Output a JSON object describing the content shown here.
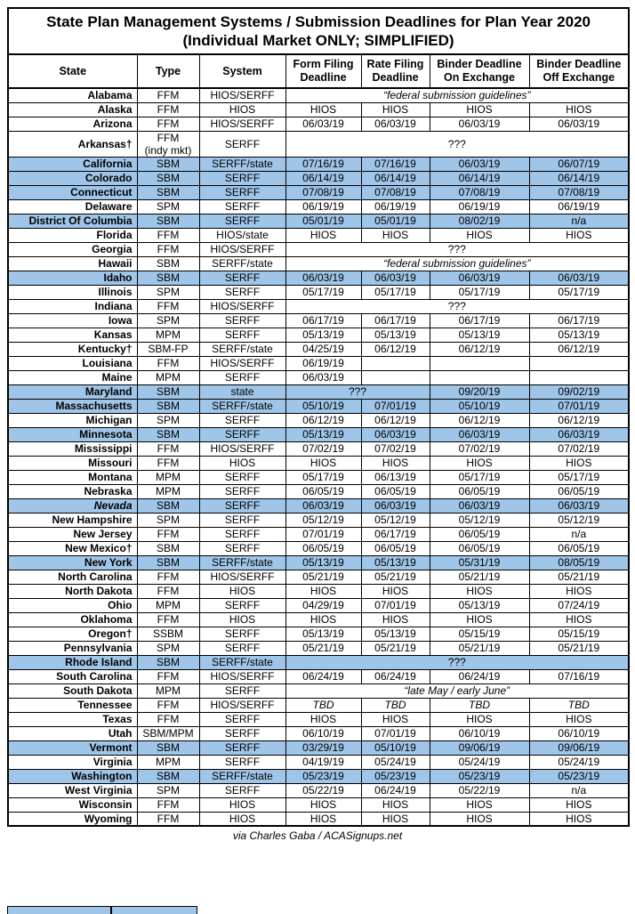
{
  "title": {
    "line1": "State Plan Management Systems / Submission Deadlines for Plan Year 2020",
    "line2": "(Individual Market ONLY; SIMPLIFIED)"
  },
  "columns": [
    "State",
    "Type",
    "System",
    "Form Filing\nDeadline",
    "Rate Filing\nDeadline",
    "Binder Deadline\nOn Exchange",
    "Binder Deadline\nOff Exchange"
  ],
  "colors": {
    "highlight": "#9FC5E8",
    "border": "#000000"
  },
  "rows": [
    {
      "state": "Alabama",
      "type": "FFM",
      "system": "HIOS/SERFF",
      "highlight": false,
      "cells": [
        {
          "text": "“federal submission guidelines”",
          "colspan": 4,
          "italic": true
        }
      ]
    },
    {
      "state": "Alaska",
      "type": "FFM",
      "system": "HIOS",
      "highlight": false,
      "cells": [
        {
          "text": "HIOS"
        },
        {
          "text": "HIOS"
        },
        {
          "text": "HIOS"
        },
        {
          "text": "HIOS"
        }
      ]
    },
    {
      "state": "Arizona",
      "type": "FFM",
      "system": "HIOS/SERFF",
      "highlight": false,
      "cells": [
        {
          "text": "06/03/19"
        },
        {
          "text": "06/03/19"
        },
        {
          "text": "06/03/19"
        },
        {
          "text": "06/03/19"
        }
      ]
    },
    {
      "state": "Arkansas†",
      "type": "FFM\n(indy mkt)",
      "system": "SERFF",
      "highlight": false,
      "cells": [
        {
          "text": "???",
          "colspan": 4
        }
      ]
    },
    {
      "state": "California",
      "type": "SBM",
      "system": "SERFF/state",
      "highlight": true,
      "cells": [
        {
          "text": "07/16/19"
        },
        {
          "text": "07/16/19"
        },
        {
          "text": "06/03/19"
        },
        {
          "text": "06/07/19"
        }
      ]
    },
    {
      "state": "Colorado",
      "type": "SBM",
      "system": "SERFF",
      "highlight": true,
      "cells": [
        {
          "text": "06/14/19"
        },
        {
          "text": "06/14/19"
        },
        {
          "text": "06/14/19"
        },
        {
          "text": "06/14/19"
        }
      ]
    },
    {
      "state": "Connecticut",
      "type": "SBM",
      "system": "SERFF",
      "highlight": true,
      "cells": [
        {
          "text": "07/08/19"
        },
        {
          "text": "07/08/19"
        },
        {
          "text": "07/08/19"
        },
        {
          "text": "07/08/19"
        }
      ]
    },
    {
      "state": "Delaware",
      "type": "SPM",
      "system": "SERFF",
      "highlight": false,
      "cells": [
        {
          "text": "06/19/19"
        },
        {
          "text": "06/19/19"
        },
        {
          "text": "06/19/19"
        },
        {
          "text": "06/19/19"
        }
      ]
    },
    {
      "state": "District Of Columbia",
      "type": "SBM",
      "system": "SERFF",
      "highlight": true,
      "cells": [
        {
          "text": "05/01/19"
        },
        {
          "text": "05/01/19"
        },
        {
          "text": "08/02/19"
        },
        {
          "text": "n/a"
        }
      ]
    },
    {
      "state": "Florida",
      "type": "FFM",
      "system": "HIOS/state",
      "highlight": false,
      "cells": [
        {
          "text": "HIOS"
        },
        {
          "text": "HIOS"
        },
        {
          "text": "HIOS"
        },
        {
          "text": "HIOS"
        }
      ]
    },
    {
      "state": "Georgia",
      "type": "FFM",
      "system": "HIOS/SERFF",
      "highlight": false,
      "cells": [
        {
          "text": "???",
          "colspan": 4
        }
      ]
    },
    {
      "state": "Hawaii",
      "type": "SBM",
      "system": "SERFF/state",
      "highlight": false,
      "cells": [
        {
          "text": "“federal submission guidelines”",
          "colspan": 4,
          "italic": true
        }
      ]
    },
    {
      "state": "Idaho",
      "type": "SBM",
      "system": "SERFF",
      "highlight": true,
      "cells": [
        {
          "text": "06/03/19"
        },
        {
          "text": "06/03/19"
        },
        {
          "text": "06/03/19"
        },
        {
          "text": "06/03/19"
        }
      ]
    },
    {
      "state": "Illinois",
      "type": "SPM",
      "system": "SERFF",
      "highlight": false,
      "cells": [
        {
          "text": "05/17/19"
        },
        {
          "text": "05/17/19"
        },
        {
          "text": "05/17/19"
        },
        {
          "text": "05/17/19"
        }
      ]
    },
    {
      "state": "Indiana",
      "type": "FFM",
      "system": "HIOS/SERFF",
      "highlight": false,
      "cells": [
        {
          "text": "???",
          "colspan": 4
        }
      ]
    },
    {
      "state": "Iowa",
      "type": "SPM",
      "system": "SERFF",
      "highlight": false,
      "cells": [
        {
          "text": "06/17/19"
        },
        {
          "text": "06/17/19"
        },
        {
          "text": "06/17/19"
        },
        {
          "text": "06/17/19"
        }
      ]
    },
    {
      "state": "Kansas",
      "type": "MPM",
      "system": "SERFF",
      "highlight": false,
      "cells": [
        {
          "text": "05/13/19"
        },
        {
          "text": "05/13/19"
        },
        {
          "text": "05/13/19"
        },
        {
          "text": "05/13/19"
        }
      ]
    },
    {
      "state": "Kentucky†",
      "type": "SBM-FP",
      "system": "SERFF/state",
      "highlight": false,
      "cells": [
        {
          "text": "04/25/19"
        },
        {
          "text": "06/12/19"
        },
        {
          "text": "06/12/19"
        },
        {
          "text": "06/12/19"
        }
      ]
    },
    {
      "state": "Louisiana",
      "type": "FFM",
      "system": "HIOS/SERFF",
      "highlight": false,
      "cells": [
        {
          "text": "06/19/19"
        },
        {
          "text": ""
        },
        {
          "text": ""
        },
        {
          "text": ""
        }
      ]
    },
    {
      "state": "Maine",
      "type": "MPM",
      "system": "SERFF",
      "highlight": false,
      "cells": [
        {
          "text": "06/03/19"
        },
        {
          "text": ""
        },
        {
          "text": ""
        },
        {
          "text": ""
        }
      ]
    },
    {
      "state": "Maryland",
      "type": "SBM",
      "system": "state",
      "highlight": true,
      "cells": [
        {
          "text": "???",
          "colspan": 2
        },
        {
          "text": "09/20/19"
        },
        {
          "text": "09/02/19"
        }
      ]
    },
    {
      "state": "Massachusetts",
      "type": "SBM",
      "system": "SERFF/state",
      "highlight": true,
      "cells": [
        {
          "text": "05/10/19"
        },
        {
          "text": "07/01/19"
        },
        {
          "text": "05/10/19"
        },
        {
          "text": "07/01/19"
        }
      ]
    },
    {
      "state": "Michigan",
      "type": "SPM",
      "system": "SERFF",
      "highlight": false,
      "cells": [
        {
          "text": "06/12/19"
        },
        {
          "text": "06/12/19"
        },
        {
          "text": "06/12/19"
        },
        {
          "text": "06/12/19"
        }
      ]
    },
    {
      "state": "Minnesota",
      "type": "SBM",
      "system": "SERFF",
      "highlight": true,
      "cells": [
        {
          "text": "05/13/19"
        },
        {
          "text": "06/03/19"
        },
        {
          "text": "06/03/19"
        },
        {
          "text": "06/03/19"
        }
      ]
    },
    {
      "state": "Mississippi",
      "type": "FFM",
      "system": "HIOS/SERFF",
      "highlight": false,
      "cells": [
        {
          "text": "07/02/19"
        },
        {
          "text": "07/02/19"
        },
        {
          "text": "07/02/19"
        },
        {
          "text": "07/02/19"
        }
      ]
    },
    {
      "state": "Missouri",
      "type": "FFM",
      "system": "HIOS",
      "highlight": false,
      "cells": [
        {
          "text": "HIOS"
        },
        {
          "text": "HIOS"
        },
        {
          "text": "HIOS"
        },
        {
          "text": "HIOS"
        }
      ]
    },
    {
      "state": "Montana",
      "type": "MPM",
      "system": "SERFF",
      "highlight": false,
      "cells": [
        {
          "text": "05/17/19"
        },
        {
          "text": "06/13/19"
        },
        {
          "text": "05/17/19"
        },
        {
          "text": "05/17/19"
        }
      ]
    },
    {
      "state": "Nebraska",
      "type": "MPM",
      "system": "SERFF",
      "highlight": false,
      "cells": [
        {
          "text": "06/05/19"
        },
        {
          "text": "06/05/19"
        },
        {
          "text": "06/05/19"
        },
        {
          "text": "06/05/19"
        }
      ]
    },
    {
      "state": "Nevada",
      "stateItalic": true,
      "type": "SBM",
      "system": "SERFF",
      "highlight": true,
      "cells": [
        {
          "text": "06/03/19"
        },
        {
          "text": "06/03/19"
        },
        {
          "text": "06/03/19"
        },
        {
          "text": "06/03/19"
        }
      ]
    },
    {
      "state": "New Hampshire",
      "type": "SPM",
      "system": "SERFF",
      "highlight": false,
      "cells": [
        {
          "text": "05/12/19"
        },
        {
          "text": "05/12/19"
        },
        {
          "text": "05/12/19"
        },
        {
          "text": "05/12/19"
        }
      ]
    },
    {
      "state": "New Jersey",
      "type": "FFM",
      "system": "SERFF",
      "highlight": false,
      "cells": [
        {
          "text": "07/01/19"
        },
        {
          "text": "06/17/19"
        },
        {
          "text": "06/05/19"
        },
        {
          "text": "n/a"
        }
      ]
    },
    {
      "state": "New Mexico†",
      "type": "SBM",
      "system": "SERFF",
      "highlight": false,
      "cells": [
        {
          "text": "06/05/19"
        },
        {
          "text": "06/05/19"
        },
        {
          "text": "06/05/19"
        },
        {
          "text": "06/05/19"
        }
      ]
    },
    {
      "state": "New York",
      "type": "SBM",
      "system": "SERFF/state",
      "highlight": true,
      "cells": [
        {
          "text": "05/13/19"
        },
        {
          "text": "05/13/19"
        },
        {
          "text": "05/31/19"
        },
        {
          "text": "08/05/19"
        }
      ]
    },
    {
      "state": "North Carolina",
      "type": "FFM",
      "system": "HIOS/SERFF",
      "highlight": false,
      "cells": [
        {
          "text": "05/21/19"
        },
        {
          "text": "05/21/19"
        },
        {
          "text": "05/21/19"
        },
        {
          "text": "05/21/19"
        }
      ]
    },
    {
      "state": "North Dakota",
      "type": "FFM",
      "system": "HIOS",
      "highlight": false,
      "cells": [
        {
          "text": "HIOS"
        },
        {
          "text": "HIOS"
        },
        {
          "text": "HIOS"
        },
        {
          "text": "HIOS"
        }
      ]
    },
    {
      "state": "Ohio",
      "type": "MPM",
      "system": "SERFF",
      "highlight": false,
      "cells": [
        {
          "text": "04/29/19"
        },
        {
          "text": "07/01/19"
        },
        {
          "text": "05/13/19"
        },
        {
          "text": "07/24/19"
        }
      ]
    },
    {
      "state": "Oklahoma",
      "type": "FFM",
      "system": "HIOS",
      "highlight": false,
      "cells": [
        {
          "text": "HIOS"
        },
        {
          "text": "HIOS"
        },
        {
          "text": "HIOS"
        },
        {
          "text": "HIOS"
        }
      ]
    },
    {
      "state": "Oregon†",
      "type": "SSBM",
      "system": "SERFF",
      "highlight": false,
      "cells": [
        {
          "text": "05/13/19"
        },
        {
          "text": "05/13/19"
        },
        {
          "text": "05/15/19"
        },
        {
          "text": "05/15/19"
        }
      ]
    },
    {
      "state": "Pennsylvania",
      "type": "SPM",
      "system": "SERFF",
      "highlight": false,
      "cells": [
        {
          "text": "05/21/19"
        },
        {
          "text": "05/21/19"
        },
        {
          "text": "05/21/19"
        },
        {
          "text": "05/21/19"
        }
      ]
    },
    {
      "state": "Rhode Island",
      "type": "SBM",
      "system": "SERFF/state",
      "highlight": true,
      "cells": [
        {
          "text": "???",
          "colspan": 4
        }
      ]
    },
    {
      "state": "South Carolina",
      "type": "FFM",
      "system": "HIOS/SERFF",
      "highlight": false,
      "cells": [
        {
          "text": "06/24/19"
        },
        {
          "text": "06/24/19"
        },
        {
          "text": "06/24/19"
        },
        {
          "text": "07/16/19"
        }
      ]
    },
    {
      "state": "South Dakota",
      "type": "MPM",
      "system": "SERFF",
      "highlight": false,
      "cells": [
        {
          "text": "“late May / early June”",
          "colspan": 4,
          "italic": true
        }
      ]
    },
    {
      "state": "Tennessee",
      "type": "FFM",
      "system": "HIOS/SERFF",
      "highlight": false,
      "cells": [
        {
          "text": "TBD",
          "italic": true
        },
        {
          "text": "TBD",
          "italic": true
        },
        {
          "text": "TBD",
          "italic": true
        },
        {
          "text": "TBD",
          "italic": true
        }
      ]
    },
    {
      "state": "Texas",
      "type": "FFM",
      "system": "SERFF",
      "highlight": false,
      "cells": [
        {
          "text": "HIOS"
        },
        {
          "text": "HIOS"
        },
        {
          "text": "HIOS"
        },
        {
          "text": "HIOS"
        }
      ]
    },
    {
      "state": "Utah",
      "type": "SBM/MPM",
      "system": "SERFF",
      "highlight": false,
      "cells": [
        {
          "text": "06/10/19"
        },
        {
          "text": "07/01/19"
        },
        {
          "text": "06/10/19"
        },
        {
          "text": "06/10/19"
        }
      ]
    },
    {
      "state": "Vermont",
      "type": "SBM",
      "system": "SERFF",
      "highlight": true,
      "cells": [
        {
          "text": "03/29/19"
        },
        {
          "text": "05/10/19"
        },
        {
          "text": "09/06/19"
        },
        {
          "text": "09/06/19"
        }
      ]
    },
    {
      "state": "Virginia",
      "type": "MPM",
      "system": "SERFF",
      "highlight": false,
      "cells": [
        {
          "text": "04/19/19"
        },
        {
          "text": "05/24/19"
        },
        {
          "text": "05/24/19"
        },
        {
          "text": "05/24/19"
        }
      ]
    },
    {
      "state": "Washington",
      "type": "SBM",
      "system": "SERFF/state",
      "highlight": true,
      "cells": [
        {
          "text": "05/23/19"
        },
        {
          "text": "05/23/19"
        },
        {
          "text": "05/23/19"
        },
        {
          "text": "05/23/19"
        }
      ]
    },
    {
      "state": "West Virginia",
      "type": "SPM",
      "system": "SERFF",
      "highlight": false,
      "cells": [
        {
          "text": "05/22/19"
        },
        {
          "text": "06/24/19"
        },
        {
          "text": "05/22/19"
        },
        {
          "text": "n/a"
        }
      ]
    },
    {
      "state": "Wisconsin",
      "type": "FFM",
      "system": "HIOS",
      "highlight": false,
      "cells": [
        {
          "text": "HIOS"
        },
        {
          "text": "HIOS"
        },
        {
          "text": "HIOS"
        },
        {
          "text": "HIOS"
        }
      ]
    },
    {
      "state": "Wyoming",
      "type": "FFM",
      "system": "HIOS",
      "highlight": false,
      "cells": [
        {
          "text": "HIOS"
        },
        {
          "text": "HIOS"
        },
        {
          "text": "HIOS"
        },
        {
          "text": "HIOS"
        }
      ]
    }
  ],
  "footer": {
    "credit": "via Charles Gaba / ACASignups.net"
  }
}
